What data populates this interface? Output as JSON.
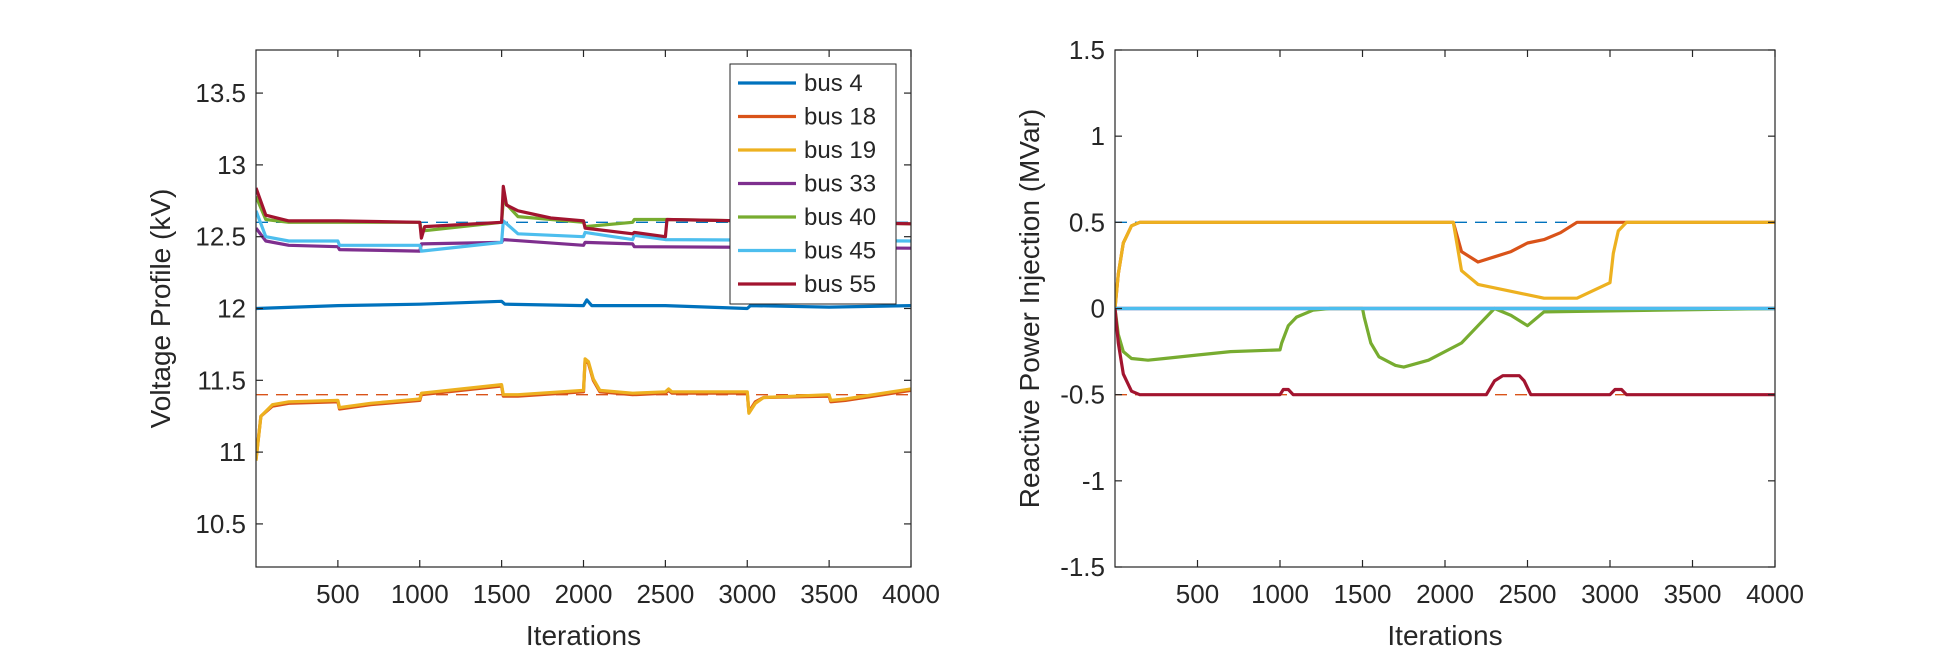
{
  "chart_data": [
    {
      "type": "line",
      "xlabel": "Iterations",
      "ylabel": "Voltage Profile (kV)",
      "xlim": [
        0,
        4000
      ],
      "ylim": [
        10.2,
        13.8
      ],
      "xticks": [
        "500",
        "1000",
        "1500",
        "2000",
        "2500",
        "3000",
        "3500",
        "4000"
      ],
      "yticks": [
        "10.5",
        "11",
        "11.5",
        "12",
        "12.5",
        "13",
        "13.5"
      ],
      "grid": false,
      "legend_position": "top-right",
      "reference_lines": [
        {
          "y": 12.6,
          "color": "#0072BD",
          "style": "dashed"
        },
        {
          "y": 11.4,
          "color": "#D95319",
          "style": "dashed"
        }
      ],
      "series": [
        {
          "name": "bus 4",
          "color": "#0072BD",
          "x": [
            0,
            500,
            1000,
            1500,
            1520,
            2000,
            2020,
            2050,
            2500,
            3000,
            3020,
            3500,
            4000
          ],
          "y": [
            12.0,
            12.02,
            12.03,
            12.05,
            12.03,
            12.02,
            12.06,
            12.02,
            12.02,
            12.0,
            12.02,
            12.01,
            12.02
          ]
        },
        {
          "name": "bus 18",
          "color": "#D95319",
          "x": [
            0,
            30,
            100,
            200,
            500,
            510,
            700,
            1000,
            1010,
            1500,
            1510,
            1600,
            2000,
            2010,
            2030,
            2060,
            2100,
            2300,
            2500,
            2520,
            2540,
            3000,
            3010,
            3050,
            3100,
            3500,
            3510,
            3600,
            4000
          ],
          "y": [
            10.95,
            11.25,
            11.32,
            11.34,
            11.35,
            11.3,
            11.33,
            11.36,
            11.4,
            11.46,
            11.39,
            11.39,
            11.42,
            11.64,
            11.62,
            11.5,
            11.42,
            11.4,
            11.41,
            11.43,
            11.41,
            11.41,
            11.28,
            11.35,
            11.38,
            11.39,
            11.35,
            11.36,
            11.43
          ]
        },
        {
          "name": "bus 19",
          "color": "#EDB120",
          "x": [
            0,
            30,
            100,
            200,
            500,
            510,
            700,
            1000,
            1010,
            1500,
            1510,
            1600,
            2000,
            2010,
            2030,
            2060,
            2100,
            2300,
            2500,
            2520,
            2540,
            3000,
            3010,
            3050,
            3100,
            3500,
            3510,
            3600,
            4000
          ],
          "y": [
            10.94,
            11.25,
            11.33,
            11.35,
            11.36,
            11.31,
            11.34,
            11.37,
            11.41,
            11.47,
            11.4,
            11.4,
            11.43,
            11.65,
            11.63,
            11.51,
            11.43,
            11.41,
            11.42,
            11.44,
            11.42,
            11.42,
            11.27,
            11.34,
            11.38,
            11.4,
            11.36,
            11.37,
            11.44
          ]
        },
        {
          "name": "bus 33",
          "color": "#7E2F8E",
          "x": [
            0,
            60,
            200,
            500,
            510,
            1000,
            1010,
            1500,
            1510,
            2000,
            2010,
            2300,
            2310,
            4000
          ],
          "y": [
            12.56,
            12.47,
            12.44,
            12.43,
            12.41,
            12.4,
            12.45,
            12.46,
            12.48,
            12.44,
            12.46,
            12.45,
            12.43,
            12.42
          ]
        },
        {
          "name": "bus 40",
          "color": "#77AC30",
          "x": [
            0,
            60,
            200,
            500,
            1000,
            1010,
            1500,
            1510,
            1600,
            2000,
            2010,
            2300,
            2310,
            2500,
            4000
          ],
          "y": [
            12.78,
            12.62,
            12.6,
            12.6,
            12.6,
            12.54,
            12.6,
            12.75,
            12.64,
            12.6,
            12.57,
            12.6,
            12.62,
            12.62,
            12.59
          ]
        },
        {
          "name": "bus 45",
          "color": "#4DBEEE",
          "x": [
            0,
            60,
            200,
            500,
            510,
            1000,
            1010,
            1500,
            1510,
            1600,
            2000,
            2010,
            2300,
            2310,
            2500,
            4000
          ],
          "y": [
            12.68,
            12.5,
            12.47,
            12.47,
            12.44,
            12.44,
            12.4,
            12.46,
            12.61,
            12.52,
            12.5,
            12.53,
            12.48,
            12.51,
            12.48,
            12.47
          ]
        },
        {
          "name": "bus 55",
          "color": "#A2142F",
          "x": [
            0,
            60,
            200,
            500,
            1000,
            1010,
            1030,
            1500,
            1510,
            1530,
            1600,
            1800,
            2000,
            2010,
            2300,
            2310,
            2500,
            2510,
            4000
          ],
          "y": [
            12.84,
            12.65,
            12.61,
            12.61,
            12.6,
            12.49,
            12.57,
            12.6,
            12.85,
            12.72,
            12.68,
            12.63,
            12.61,
            12.56,
            12.52,
            12.53,
            12.5,
            12.62,
            12.59
          ]
        }
      ]
    },
    {
      "type": "line",
      "xlabel": "Iterations",
      "ylabel": "Reactive Power Injection (MVar)",
      "xlim": [
        0,
        4000
      ],
      "ylim": [
        -1.5,
        1.5
      ],
      "xticks": [
        "500",
        "1000",
        "1500",
        "2000",
        "2500",
        "3000",
        "3500",
        "4000"
      ],
      "yticks": [
        "-1.5",
        "-1",
        "-0.5",
        "0",
        "0.5",
        "1",
        "1.5"
      ],
      "grid": false,
      "reference_lines": [
        {
          "y": 0.5,
          "color": "#0072BD",
          "style": "dashed"
        },
        {
          "y": -0.5,
          "color": "#D95319",
          "style": "dashed"
        }
      ],
      "series": [
        {
          "name": "bus 4",
          "color": "#0072BD",
          "x": [
            0,
            4000
          ],
          "y": [
            0,
            0
          ]
        },
        {
          "name": "bus 18",
          "color": "#D95319",
          "x": [
            0,
            20,
            50,
            100,
            150,
            2050,
            2100,
            2200,
            2300,
            2400,
            2500,
            2600,
            2700,
            2800,
            4000
          ],
          "y": [
            0,
            0.2,
            0.38,
            0.48,
            0.5,
            0.5,
            0.33,
            0.27,
            0.3,
            0.33,
            0.38,
            0.4,
            0.44,
            0.5,
            0.5
          ]
        },
        {
          "name": "bus 19",
          "color": "#EDB120",
          "x": [
            0,
            20,
            50,
            100,
            150,
            2050,
            2100,
            2200,
            2400,
            2600,
            2800,
            3000,
            3020,
            3050,
            3100,
            4000
          ],
          "y": [
            0,
            0.2,
            0.38,
            0.48,
            0.5,
            0.5,
            0.22,
            0.14,
            0.1,
            0.06,
            0.06,
            0.15,
            0.32,
            0.45,
            0.5,
            0.5
          ]
        },
        {
          "name": "bus 33",
          "color": "#7E2F8E",
          "x": [
            0,
            4000
          ],
          "y": [
            0,
            0
          ]
        },
        {
          "name": "bus 40",
          "color": "#77AC30",
          "x": [
            0,
            20,
            50,
            100,
            200,
            300,
            500,
            700,
            1000,
            1010,
            1050,
            1100,
            1200,
            1300,
            1500,
            1510,
            1550,
            1600,
            1700,
            1750,
            1900,
            2100,
            2200,
            2300,
            2400,
            2500,
            2600,
            4000
          ],
          "y": [
            0,
            -0.15,
            -0.25,
            -0.29,
            -0.3,
            -0.29,
            -0.27,
            -0.25,
            -0.24,
            -0.2,
            -0.1,
            -0.05,
            -0.01,
            0,
            0,
            -0.05,
            -0.2,
            -0.28,
            -0.33,
            -0.34,
            -0.3,
            -0.2,
            -0.1,
            0,
            -0.04,
            -0.1,
            -0.02,
            0
          ]
        },
        {
          "name": "bus 45",
          "color": "#4DBEEE",
          "x": [
            0,
            4000
          ],
          "y": [
            0,
            0
          ]
        },
        {
          "name": "bus 55",
          "color": "#A2142F",
          "x": [
            0,
            20,
            50,
            100,
            150,
            1000,
            1020,
            1050,
            1080,
            1100,
            2250,
            2300,
            2350,
            2450,
            2480,
            2520,
            3000,
            3030,
            3070,
            3100,
            4000
          ],
          "y": [
            0,
            -0.2,
            -0.38,
            -0.48,
            -0.5,
            -0.5,
            -0.47,
            -0.47,
            -0.5,
            -0.5,
            -0.5,
            -0.42,
            -0.39,
            -0.39,
            -0.42,
            -0.5,
            -0.5,
            -0.47,
            -0.47,
            -0.5,
            -0.5
          ]
        }
      ]
    }
  ]
}
